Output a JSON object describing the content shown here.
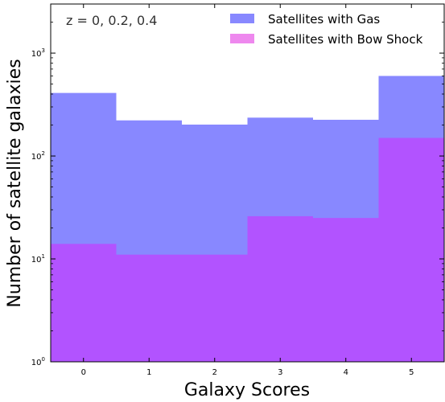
{
  "chart_data": {
    "type": "bar",
    "annotation": "z = 0, 0.2, 0.4",
    "xlabel": "Galaxy Scores",
    "ylabel": "Number of satellite galaxies",
    "y_scale": "log",
    "ylim": [
      1,
      3000
    ],
    "xlim": [
      -0.5,
      5.5
    ],
    "grid": false,
    "legend_position": "top-right",
    "categories": [
      "0",
      "1",
      "2",
      "3",
      "4",
      "5"
    ],
    "x_ticks": [
      "0",
      "1",
      "2",
      "3",
      "4",
      "5"
    ],
    "y_ticks": [
      {
        "value": 1,
        "base": "10",
        "exp": "0"
      },
      {
        "value": 10,
        "base": "10",
        "exp": "1"
      },
      {
        "value": 100,
        "base": "10",
        "exp": "2"
      },
      {
        "value": 1000,
        "base": "10",
        "exp": "3"
      }
    ],
    "series": [
      {
        "name": "Satellites with Gas",
        "color": "#8888ff",
        "values": [
          410,
          222,
          202,
          236,
          225,
          600
        ]
      },
      {
        "name": "Satellites with Bow Shock",
        "color": "#ee88ee",
        "values": [
          14,
          11,
          11,
          26,
          25,
          150
        ]
      }
    ],
    "overlap_color": "#b253ff"
  }
}
